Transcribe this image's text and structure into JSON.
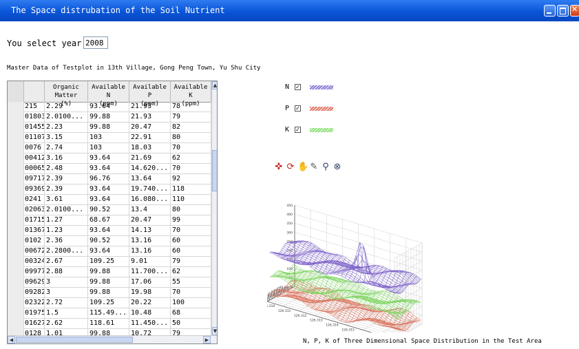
{
  "window": {
    "title": "The Space distrubation of the Soil Nutrient",
    "minimize_icon": "minimize-icon",
    "maximize_icon": "maximize-icon",
    "close_icon": "close-icon"
  },
  "year": {
    "label": "You select year is:",
    "value": "2008"
  },
  "subtitle": "Master Data of Testplot in 13th Village, Gong Peng Town, Yu Shu City",
  "table": {
    "columns": [
      {
        "l1": "",
        "l2": ""
      },
      {
        "l1": "",
        "l2": ""
      },
      {
        "l1": "Organic Matter",
        "l2": "(%)"
      },
      {
        "l1": "Available N",
        "l2": "(ppm)"
      },
      {
        "l1": "Available P",
        "l2": "(ppm)"
      },
      {
        "l1": "Available K",
        "l2": "(ppm)"
      }
    ],
    "rows": [
      [
        "215",
        "2.29",
        "93.64",
        "21.93",
        "78"
      ],
      [
        "01803",
        "2.0100...",
        "99.88",
        "21.93",
        "79"
      ],
      [
        "01455",
        "2.23",
        "99.88",
        "20.47",
        "82"
      ],
      [
        "01107",
        "3.15",
        "103",
        "22.91",
        "80"
      ],
      [
        "0076",
        "2.74",
        "103",
        "18.03",
        "70"
      ],
      [
        "00412",
        "3.16",
        "93.64",
        "21.69",
        "62"
      ],
      [
        "00065",
        "2.48",
        "93.64",
        "14.620...",
        "70"
      ],
      [
        "09717",
        "2.39",
        "96.76",
        "13.64",
        "92"
      ],
      [
        "09369",
        "2.39",
        "93.64",
        "19.740...",
        "118"
      ],
      [
        "0241",
        "3.61",
        "93.64",
        "16.080...",
        "110"
      ],
      [
        "02063",
        "2.0100...",
        "90.52",
        "13.4",
        "80"
      ],
      [
        "01715",
        "1.27",
        "68.67",
        "20.47",
        "99"
      ],
      [
        "01367",
        "1.23",
        "93.64",
        "14.13",
        "70"
      ],
      [
        "0102",
        "2.36",
        "90.52",
        "13.16",
        "60"
      ],
      [
        "00672",
        "2.2800...",
        "93.64",
        "13.16",
        "60"
      ],
      [
        "00324",
        "2.67",
        "109.25",
        "9.01",
        "79"
      ],
      [
        "09977",
        "2.88",
        "99.88",
        "11.700...",
        "62"
      ],
      [
        "09629",
        "3",
        "99.88",
        "17.06",
        "55"
      ],
      [
        "09282",
        "3",
        "99.88",
        "19.98",
        "70"
      ],
      [
        "02322",
        "2.72",
        "109.25",
        "20.22",
        "100"
      ],
      [
        "01975",
        "1.5",
        "115.49...",
        "10.48",
        "68"
      ],
      [
        "01627",
        "2.62",
        "118.61",
        "11.450...",
        "50"
      ],
      [
        "0128",
        "1.01",
        "99.88",
        "10.72",
        "79"
      ]
    ]
  },
  "legend": [
    {
      "label": "N",
      "checked": true,
      "color": "#8a7fd6",
      "check_glyph": "☑"
    },
    {
      "label": "P",
      "checked": true,
      "color": "#e07a6a",
      "check_glyph": "☑"
    },
    {
      "label": "K",
      "checked": true,
      "color": "#8fe07a",
      "check_glyph": "☑"
    }
  ],
  "toolbar_icons": [
    "select-icon",
    "rotate-icon",
    "pan-icon",
    "datacursor-icon",
    "zoom-in-icon",
    "zoom-out-icon"
  ],
  "caption": "N, P, K of Three Dimensional Space Distribution in the Test Area",
  "chart_data": {
    "type": "surface3d",
    "title": "",
    "zlim": [
      0,
      450
    ],
    "zticks": [
      "450",
      "400",
      "350",
      "300",
      "250",
      "200",
      "150",
      "100",
      "50",
      "0"
    ],
    "xticks": [
      "126.310",
      "126.311",
      "126.312",
      "126.313",
      "126.314",
      "126.315",
      "126.316",
      "126.317",
      "126.318"
    ],
    "yticks": [
      "44.9955",
      "44.9960",
      "44.9965",
      "44.9970",
      "44.9975",
      "44.9980",
      "44.9985",
      "44.9990",
      "44.9995",
      "45.0000",
      "45.0005"
    ],
    "series": [
      {
        "name": "N",
        "color": "#7b5fc8",
        "level": 250
      },
      {
        "name": "P",
        "color": "#d9735e",
        "level": 30
      },
      {
        "name": "K",
        "color": "#7cd45e",
        "level": 120
      }
    ]
  }
}
